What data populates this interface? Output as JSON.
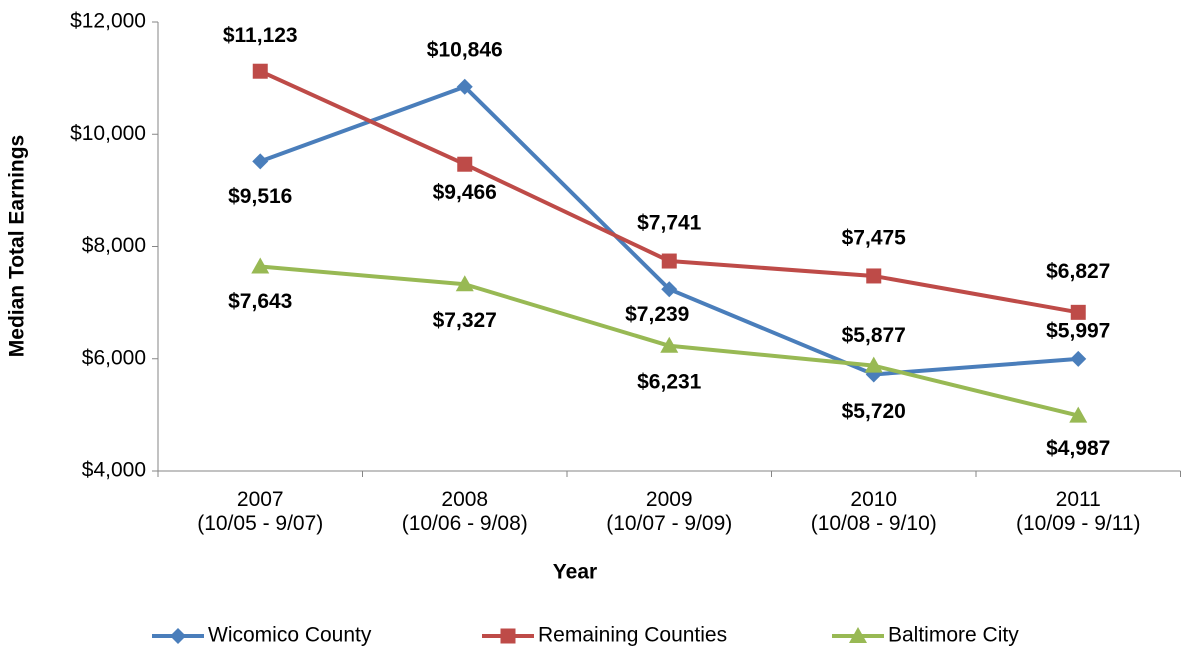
{
  "chart_data": {
    "type": "line",
    "categories": [
      "2007\n(10/05 - 9/07)",
      "2008\n(10/06 - 9/08)",
      "2009\n(10/07 - 9/09)",
      "2010\n(10/08 - 9/10)",
      "2011\n(10/09 - 9/11)"
    ],
    "series": [
      {
        "name": "Wicomico County",
        "color": "#4a7ebb",
        "values": [
          9516,
          10846,
          7239,
          5720,
          5997
        ],
        "value_labels": [
          "$9,516",
          "$10,846",
          "$7,239",
          "$5,720",
          "$5,997"
        ]
      },
      {
        "name": "Remaining Counties",
        "color": "#be4b48",
        "values": [
          11123,
          9466,
          7741,
          7475,
          6827
        ],
        "value_labels": [
          "$11,123",
          "$9,466",
          "$7,741",
          "$7,475",
          "$6,827"
        ]
      },
      {
        "name": "Baltimore City",
        "color": "#98b954",
        "values": [
          7643,
          7327,
          6231,
          5877,
          4987
        ],
        "value_labels": [
          "$7,643",
          "$7,327",
          "$6,231",
          "$5,877",
          "$4,987"
        ]
      }
    ],
    "ylim": [
      4000,
      12000
    ],
    "yticks": [
      {
        "value": 4000,
        "label": "$4,000"
      },
      {
        "value": 6000,
        "label": "$6,000"
      },
      {
        "value": 8000,
        "label": "$8,000"
      },
      {
        "value": 10000,
        "label": "$10,000"
      },
      {
        "value": 12000,
        "label": "$12,000"
      }
    ],
    "x_label": "Year",
    "y_label": "Median Total Earnings",
    "legend": "bottom"
  }
}
